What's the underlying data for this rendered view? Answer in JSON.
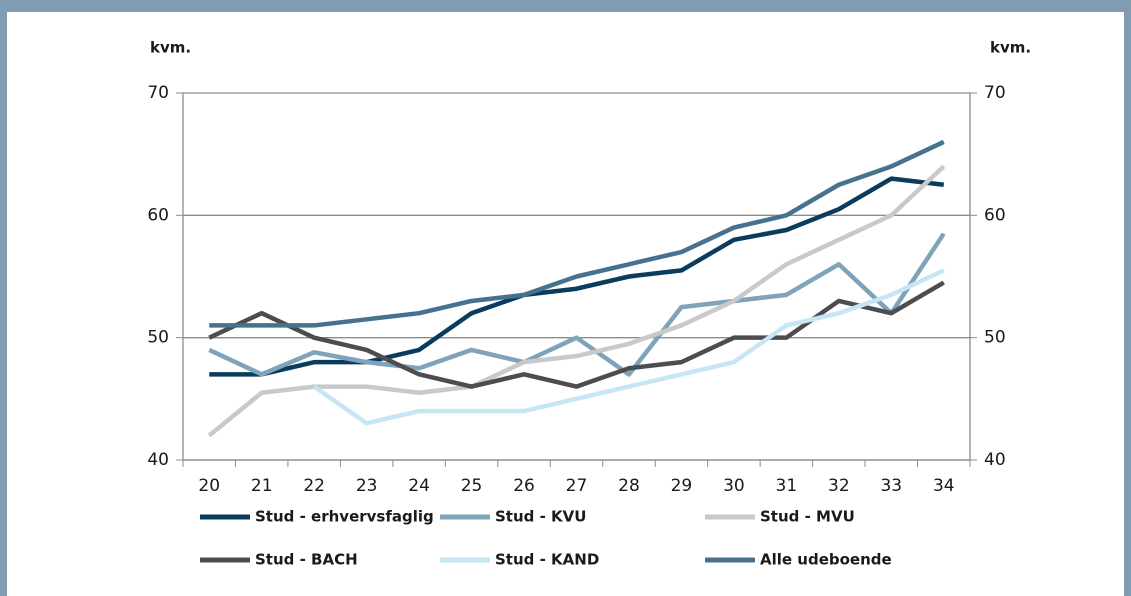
{
  "chart_data": {
    "type": "line",
    "y_label": "kvm.",
    "y2_label": "kvm.",
    "categories": [
      "20",
      "21",
      "22",
      "23",
      "24",
      "25",
      "26",
      "27",
      "28",
      "29",
      "30",
      "31",
      "32",
      "33",
      "34"
    ],
    "series": [
      {
        "name": "Stud - erhvervsfaglig",
        "color": "#0b3c5d",
        "values": [
          47,
          47,
          48,
          48,
          49,
          52,
          53.5,
          54,
          55,
          55.5,
          58,
          58.8,
          60.5,
          63,
          62.5
        ]
      },
      {
        "name": "Stud - KVU",
        "color": "#7fa3ba",
        "values": [
          49,
          47,
          48.8,
          48,
          47.5,
          49,
          48,
          50,
          47,
          52.5,
          53,
          53.5,
          56,
          52,
          58.5
        ]
      },
      {
        "name": "Stud - MVU",
        "color": "#c9c9c9",
        "values": [
          42,
          45.5,
          46,
          46,
          45.5,
          46,
          48,
          48.5,
          49.5,
          51,
          53,
          56,
          58,
          60,
          64
        ]
      },
      {
        "name": "Stud - BACH",
        "color": "#4d4d4f",
        "values": [
          50,
          52,
          50,
          49,
          47,
          46,
          47,
          46,
          47.5,
          48,
          50,
          50,
          53,
          52,
          54.5
        ]
      },
      {
        "name": "Stud - KAND",
        "color": "#c6e6f5",
        "values": [
          null,
          null,
          46,
          43,
          44,
          44,
          44,
          45,
          46,
          47,
          48,
          51,
          52,
          53.5,
          55.5
        ]
      },
      {
        "name": "Alle udeboende",
        "color": "#46728f",
        "values": [
          51,
          51,
          51,
          51.5,
          52,
          53,
          53.5,
          55,
          56,
          57,
          59,
          60,
          62.5,
          64,
          66
        ]
      }
    ],
    "ylim": [
      40,
      70
    ],
    "yticks": [
      40,
      50,
      60,
      70
    ],
    "y2lim": [
      40,
      70
    ],
    "y2ticks": [
      40,
      50,
      60,
      70
    ],
    "grid": true
  }
}
